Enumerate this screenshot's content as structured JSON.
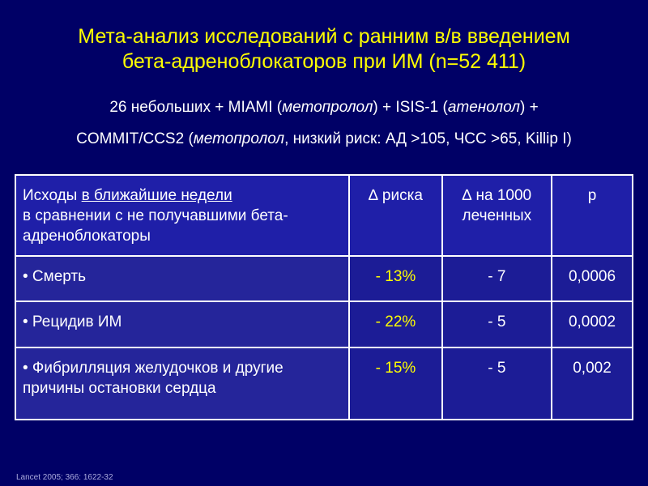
{
  "title": {
    "line1": "Мета-анализ исследований с ранним в/в введением",
    "line2": "бета-адреноблокаторов при ИМ (n=52 411)"
  },
  "subtitle": {
    "line1_a": "26 небольших + MIAMI (",
    "line1_b": "метопролол",
    "line1_c": ") + ISIS-1 (",
    "line1_d": "атенолол",
    "line1_e": ") +",
    "line2_a": "COMMIT/CCS2 (",
    "line2_b": "метопролол",
    "line2_c": ", низкий риск: АД >105, ЧСС >65, Killip I)"
  },
  "table": {
    "header": {
      "outcome_a": "Исходы ",
      "outcome_b": "в ближайшие недели",
      "outcome_c": "в сравнении с не получавшими бета-адреноблокаторы",
      "risk": "∆ риска",
      "per1000": "∆ на 1000 леченных",
      "p": "p"
    },
    "rows": [
      {
        "outcome": "• Смерть",
        "risk": "- 13%",
        "per1000": "- 7",
        "p": "0,0006"
      },
      {
        "outcome": "• Рецидив ИМ",
        "risk": "- 22%",
        "per1000": "- 5",
        "p": "0,0002"
      },
      {
        "outcome": "• Фибрилляция желудочков и другие причины остановки сердца",
        "risk": "- 15%",
        "per1000": "- 5",
        "p": "0,002"
      }
    ]
  },
  "source": "Lancet 2005; 366: 1622-32"
}
